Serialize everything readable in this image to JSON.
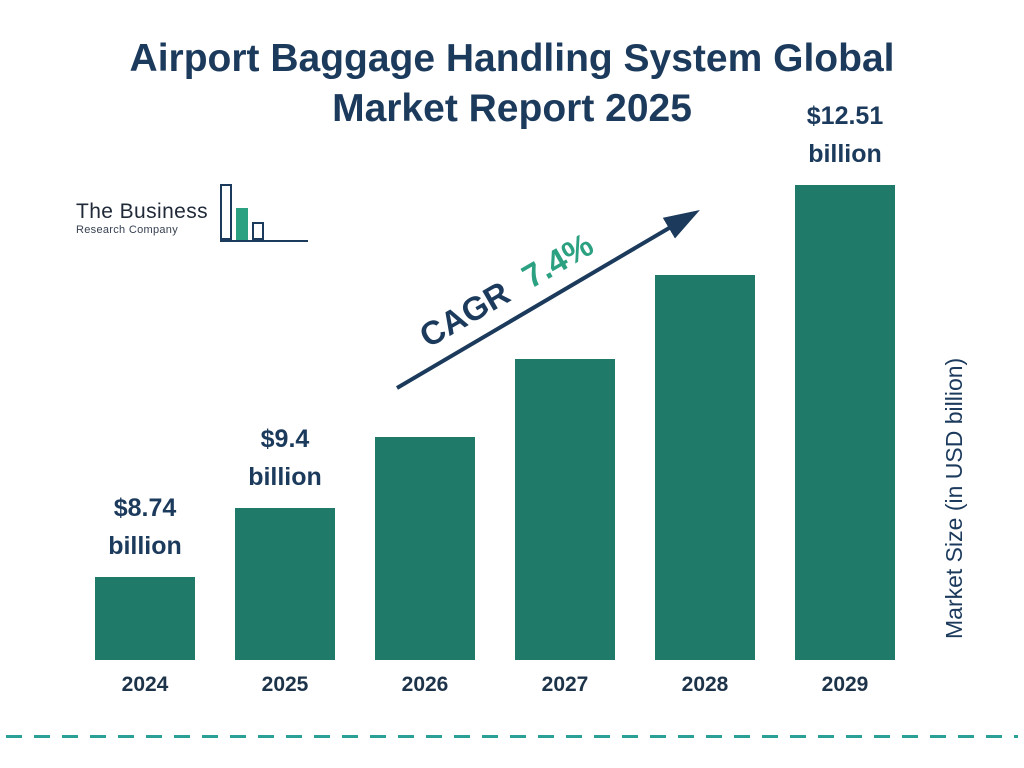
{
  "title": {
    "line1": "Airport Baggage Handling System Global",
    "line2": "Market Report 2025"
  },
  "logo": {
    "name": "The Business",
    "subname": "Research Company"
  },
  "cagr": {
    "prefix": "CAGR",
    "value": "7.4%"
  },
  "chart_data": {
    "type": "bar",
    "title": "Airport Baggage Handling System Global Market Report 2025",
    "categories": [
      "2024",
      "2025",
      "2026",
      "2027",
      "2028",
      "2029"
    ],
    "values": [
      8.74,
      9.4,
      10.09,
      10.84,
      11.64,
      12.51
    ],
    "labeled_values": [
      {
        "index": 0,
        "amount": "$8.74",
        "unit": "billion"
      },
      {
        "index": 1,
        "amount": "$9.4",
        "unit": "billion"
      },
      {
        "index": 5,
        "amount": "$12.51",
        "unit": "billion"
      }
    ],
    "xlabel": "",
    "ylabel": "Market Size (in USD billion)",
    "annotation": "CAGR 7.4%",
    "legend": [],
    "grid": false,
    "colors": {
      "bar": "#1f7a69",
      "title": "#1b3a5c",
      "accent": "#2ca182",
      "divider": "#2aa097"
    }
  }
}
